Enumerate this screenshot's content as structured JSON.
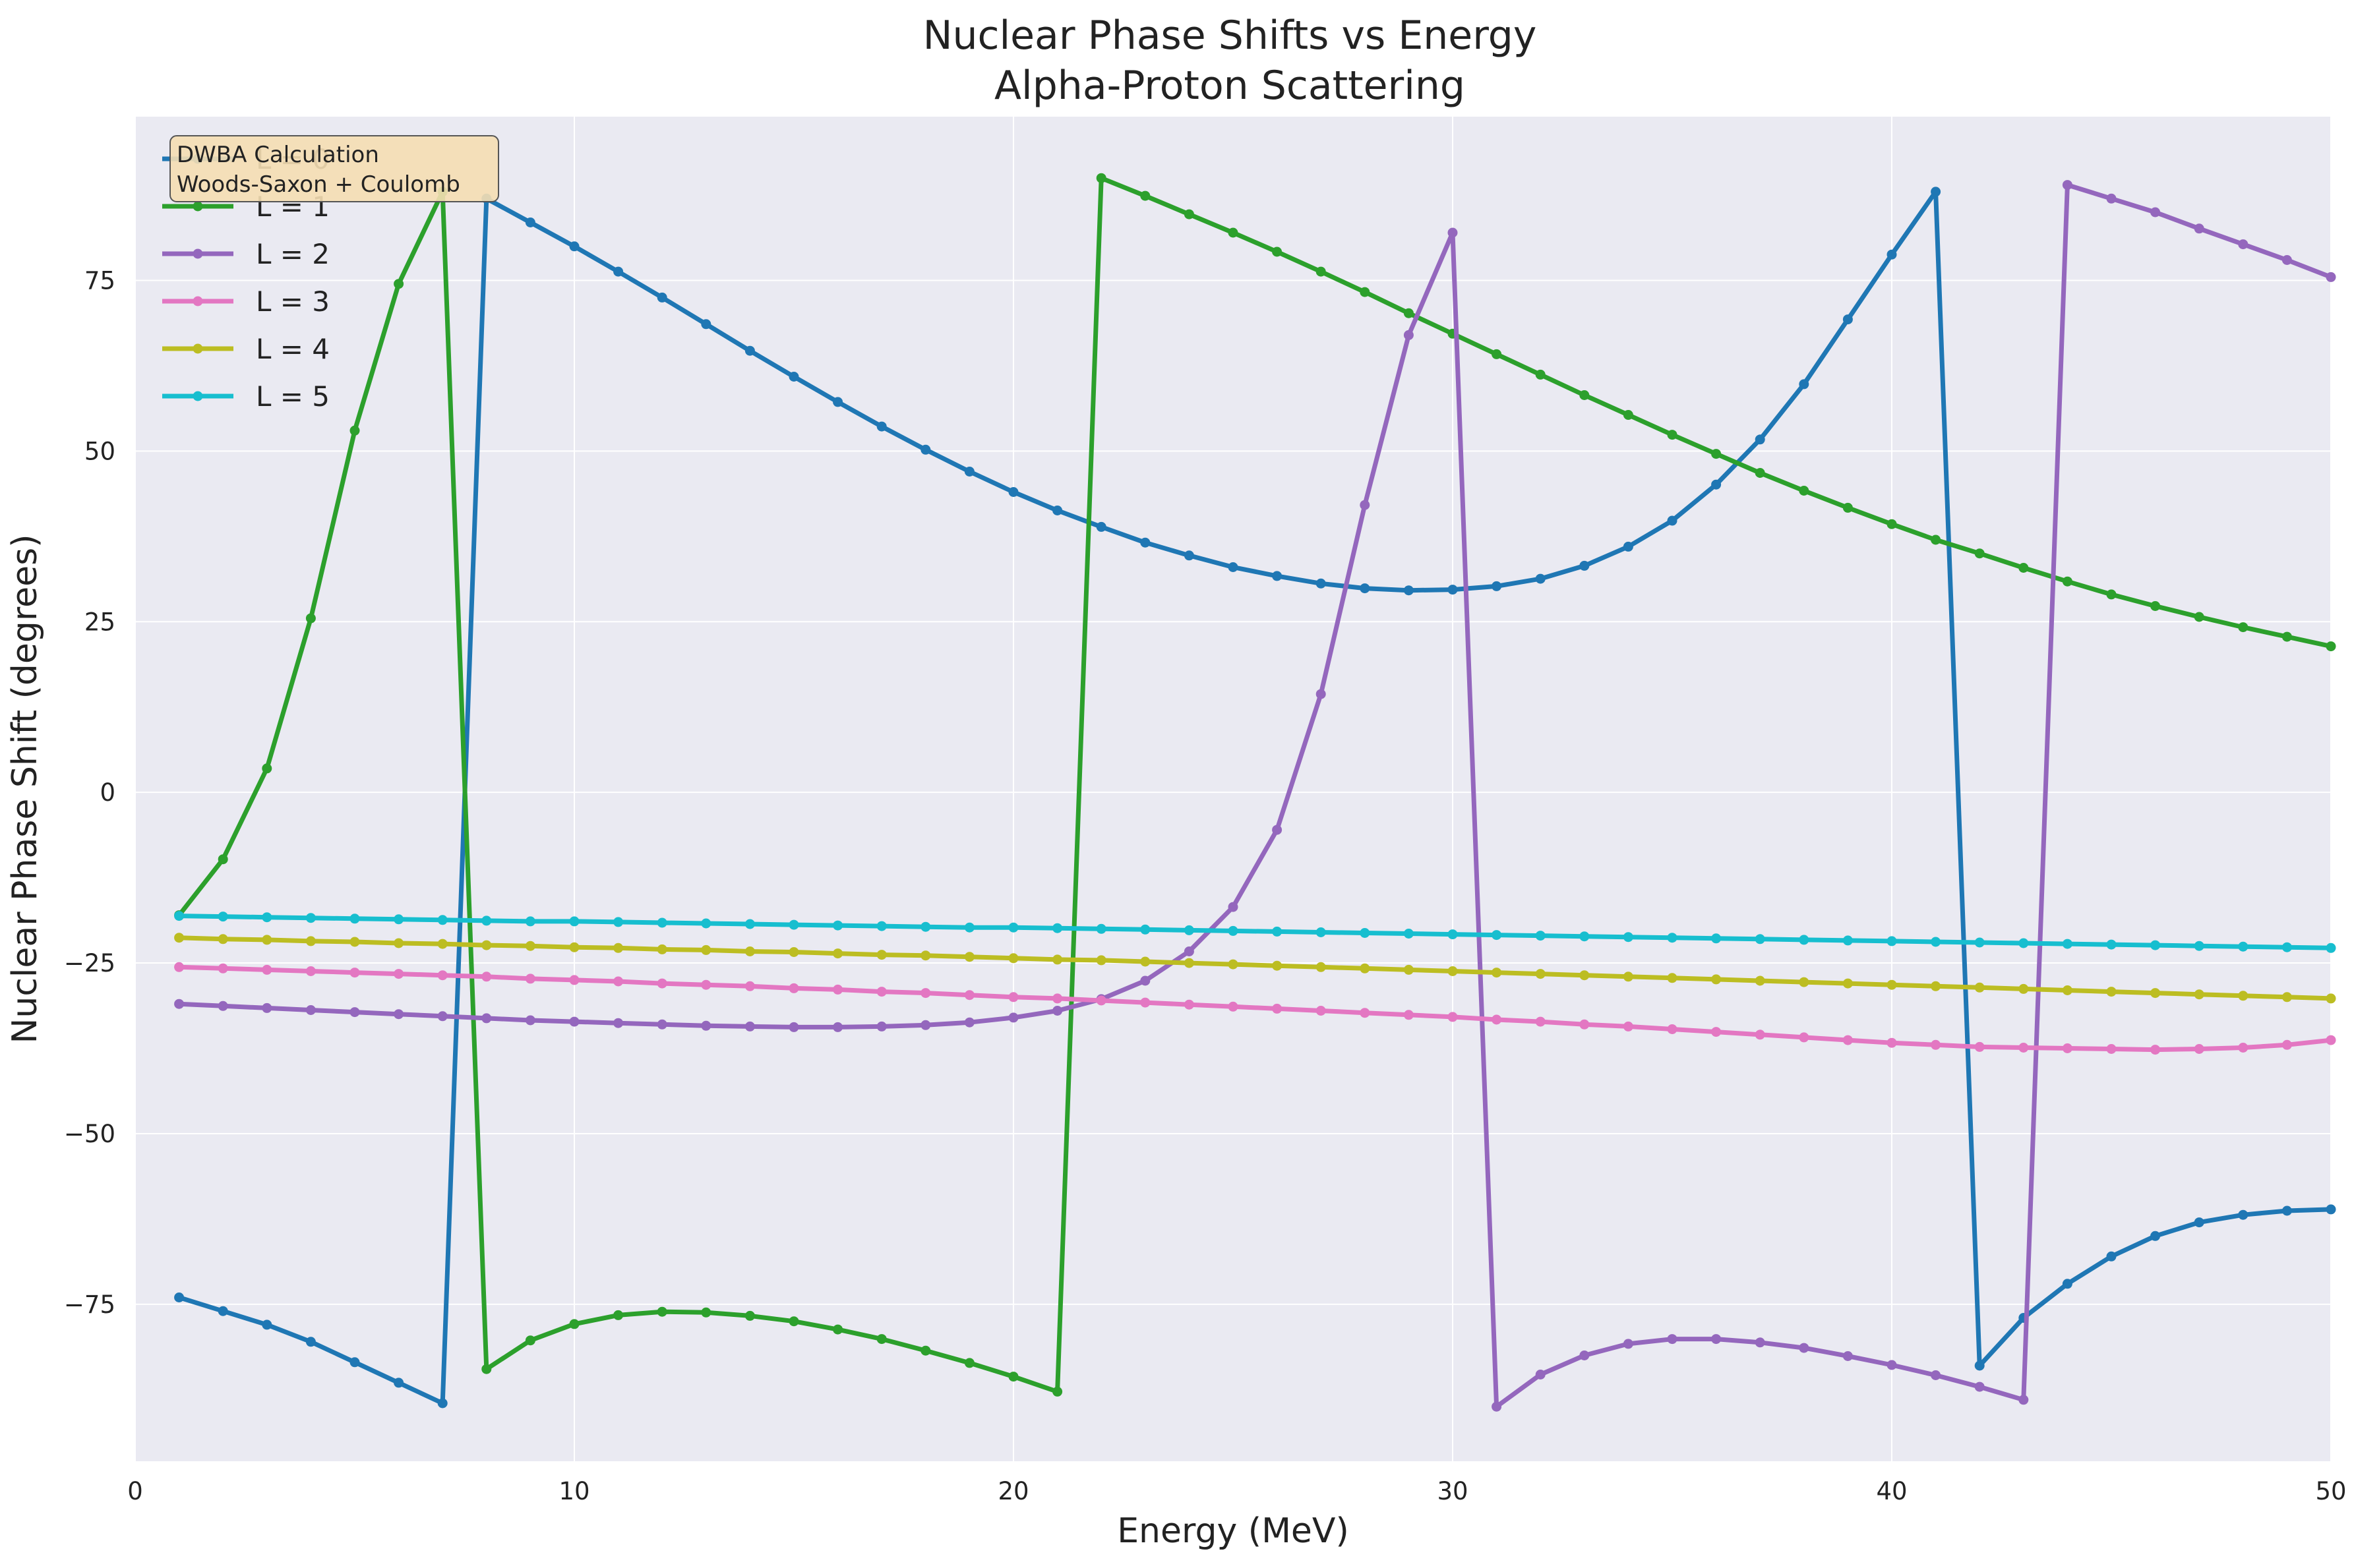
{
  "chart_data": {
    "type": "line",
    "title": "Nuclear Phase Shifts vs Energy",
    "subtitle": "Alpha-Proton Scattering",
    "xlabel": "Energy (MeV)",
    "ylabel": "Nuclear Phase Shift (degrees)",
    "xlim": [
      0,
      50
    ],
    "ylim": [
      -98,
      99
    ],
    "xticks": [
      0,
      10,
      20,
      30,
      40,
      50
    ],
    "yticks": [
      -75,
      -50,
      -25,
      0,
      25,
      50,
      75
    ],
    "grid": true,
    "legend_position": "top-left",
    "annotation": [
      "DWBA Calculation",
      "Woods-Saxon + Coulomb"
    ],
    "x": [
      1,
      2,
      3,
      4,
      5,
      6,
      7,
      8,
      9,
      10,
      11,
      12,
      13,
      14,
      15,
      16,
      17,
      18,
      19,
      20,
      21,
      22,
      23,
      24,
      25,
      26,
      27,
      28,
      29,
      30,
      31,
      32,
      33,
      34,
      35,
      36,
      37,
      38,
      39,
      40,
      41,
      42,
      43,
      44,
      45,
      46,
      47,
      48,
      49,
      50
    ],
    "series": [
      {
        "name": "L = 0",
        "color": "#1f77b4",
        "values": [
          -74,
          -76,
          -78,
          -80.5,
          -83.5,
          -86.5,
          -89.5,
          87,
          83.5,
          80,
          76.3,
          72.5,
          68.6,
          64.7,
          60.9,
          57.2,
          53.6,
          50.2,
          47,
          44,
          41.3,
          38.9,
          36.6,
          34.7,
          33,
          31.7,
          30.6,
          29.9,
          29.6,
          29.7,
          30.2,
          31.3,
          33.2,
          36,
          39.8,
          45.1,
          51.7,
          59.8,
          69.3,
          78.8,
          88,
          -84,
          -77,
          -72,
          -68,
          -65,
          -63,
          -61.9,
          -61.3,
          -61.1
        ]
      },
      {
        "name": "L = 1",
        "color": "#2ca02c",
        "values": [
          -18,
          -9.8,
          3.5,
          25.5,
          53,
          74.5,
          88,
          -84.5,
          -80.3,
          -77.9,
          -76.6,
          -76.1,
          -76.2,
          -76.7,
          -77.5,
          -78.7,
          -80.1,
          -81.8,
          -83.6,
          -85.6,
          -87.8,
          90,
          87.4,
          84.7,
          82,
          79.2,
          76.3,
          73.3,
          70.2,
          67.2,
          64.2,
          61.2,
          58.2,
          55.3,
          52.4,
          49.6,
          46.8,
          44.2,
          41.7,
          39.3,
          37,
          35,
          32.9,
          30.9,
          29,
          27.3,
          25.7,
          24.2,
          22.8,
          21.4
        ]
      },
      {
        "name": "L = 2",
        "color": "#9467bd",
        "values": [
          -31,
          -31.3,
          -31.6,
          -31.9,
          -32.2,
          -32.5,
          -32.8,
          -33.1,
          -33.4,
          -33.6,
          -33.8,
          -34,
          -34.2,
          -34.3,
          -34.4,
          -34.4,
          -34.3,
          -34.1,
          -33.7,
          -33,
          -32,
          -30.3,
          -27.6,
          -23.3,
          -16.8,
          -5.5,
          14.4,
          42.1,
          67,
          82,
          -90,
          -85.3,
          -82.5,
          -80.8,
          -80.1,
          -80.1,
          -80.6,
          -81.4,
          -82.6,
          -83.9,
          -85.4,
          -87.1,
          -89,
          89,
          87,
          85,
          82.6,
          80.3,
          78,
          75.5
        ]
      },
      {
        "name": "L = 3",
        "color": "#e377c2",
        "values": [
          -25.6,
          -25.8,
          -26,
          -26.2,
          -26.4,
          -26.6,
          -26.8,
          -27,
          -27.3,
          -27.5,
          -27.7,
          -28,
          -28.2,
          -28.4,
          -28.7,
          -28.9,
          -29.2,
          -29.4,
          -29.7,
          -30,
          -30.2,
          -30.5,
          -30.8,
          -31.1,
          -31.4,
          -31.7,
          -32,
          -32.3,
          -32.6,
          -32.9,
          -33.3,
          -33.6,
          -34,
          -34.3,
          -34.7,
          -35.1,
          -35.5,
          -35.9,
          -36.3,
          -36.7,
          -37,
          -37.3,
          -37.4,
          -37.5,
          -37.6,
          -37.7,
          -37.6,
          -37.4,
          -37,
          -36.3
        ]
      },
      {
        "name": "L = 4",
        "color": "#bcbd22",
        "values": [
          -21.3,
          -21.5,
          -21.6,
          -21.8,
          -21.9,
          -22.1,
          -22.2,
          -22.4,
          -22.5,
          -22.7,
          -22.8,
          -23,
          -23.1,
          -23.3,
          -23.4,
          -23.6,
          -23.8,
          -23.9,
          -24.1,
          -24.3,
          -24.5,
          -24.6,
          -24.8,
          -25,
          -25.2,
          -25.4,
          -25.6,
          -25.8,
          -26,
          -26.2,
          -26.4,
          -26.6,
          -26.8,
          -27,
          -27.2,
          -27.4,
          -27.6,
          -27.8,
          -28,
          -28.2,
          -28.4,
          -28.6,
          -28.8,
          -29,
          -29.2,
          -29.4,
          -29.6,
          -29.8,
          -30,
          -30.2
        ]
      },
      {
        "name": "L = 5",
        "color": "#17becf",
        "values": [
          -18.1,
          -18.2,
          -18.3,
          -18.4,
          -18.5,
          -18.6,
          -18.7,
          -18.8,
          -18.9,
          -18.9,
          -19,
          -19.1,
          -19.2,
          -19.3,
          -19.4,
          -19.5,
          -19.6,
          -19.7,
          -19.8,
          -19.8,
          -19.9,
          -20,
          -20.1,
          -20.2,
          -20.3,
          -20.4,
          -20.5,
          -20.6,
          -20.7,
          -20.8,
          -20.9,
          -21,
          -21.1,
          -21.2,
          -21.3,
          -21.4,
          -21.5,
          -21.6,
          -21.7,
          -21.8,
          -21.9,
          -22,
          -22.1,
          -22.2,
          -22.3,
          -22.4,
          -22.5,
          -22.6,
          -22.7,
          -22.8
        ]
      }
    ]
  }
}
